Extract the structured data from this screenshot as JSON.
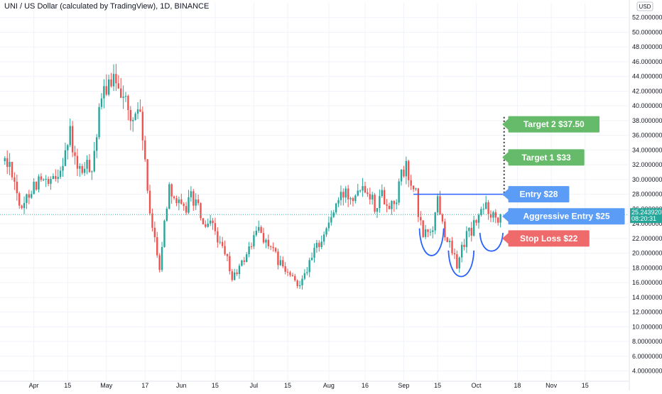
{
  "header": {
    "title": "UNI / US Dollar (calculated by TradingView), 1D, BINANCE",
    "currency": "USD"
  },
  "chart_data": {
    "type": "candlestick",
    "title": "UNI / US Dollar (calculated by TradingView), 1D, BINANCE",
    "ylim": [
      2.7,
      54.0
    ],
    "y_ticks": [
      "52.0000000",
      "50.0000000",
      "48.0000000",
      "46.0000000",
      "44.0000000",
      "42.0000000",
      "40.0000000",
      "38.0000000",
      "36.0000000",
      "34.0000000",
      "32.0000000",
      "30.0000000",
      "28.0000000",
      "26.0000000",
      "24.0000000",
      "22.0000000",
      "20.0000000",
      "18.0000000",
      "16.0000000",
      "14.0000000",
      "12.0000000",
      "10.0000000",
      "8.0000000",
      "6.0000000",
      "4.0000000"
    ],
    "x_ticks": [
      {
        "label": "Apr",
        "day": 12
      },
      {
        "label": "15",
        "day": 26
      },
      {
        "label": "May",
        "day": 42
      },
      {
        "label": "17",
        "day": 58
      },
      {
        "label": "Jun",
        "day": 73
      },
      {
        "label": "15",
        "day": 87
      },
      {
        "label": "Jul",
        "day": 103
      },
      {
        "label": "15",
        "day": 117
      },
      {
        "label": "Aug",
        "day": 134
      },
      {
        "label": "16",
        "day": 149
      },
      {
        "label": "Sep",
        "day": 165
      },
      {
        "label": "15",
        "day": 179
      },
      {
        "label": "Oct",
        "day": 195
      },
      {
        "label": "18",
        "day": 212
      },
      {
        "label": "Nov",
        "day": 226
      },
      {
        "label": "15",
        "day": 240
      }
    ],
    "x_day_range": [
      -2,
      258
    ],
    "current_price": {
      "value": 25.2439201,
      "label": "25.2439201",
      "countdown": "08:20:31",
      "color": "#26a69a"
    },
    "up_color": "#26a69a",
    "down_color": "#ef5350",
    "keypoints": [
      [
        0,
        32.5
      ],
      [
        3,
        31.5
      ],
      [
        7,
        25.3
      ],
      [
        10,
        28.5
      ],
      [
        14,
        30.0
      ],
      [
        18,
        29.0
      ],
      [
        21,
        30.0
      ],
      [
        27,
        36.0
      ],
      [
        30,
        31.0
      ],
      [
        33,
        31.5
      ],
      [
        36,
        32.0
      ],
      [
        40,
        40.5
      ],
      [
        42,
        43.0
      ],
      [
        44,
        42.0
      ],
      [
        46,
        44.0
      ],
      [
        49,
        42.0
      ],
      [
        52,
        37.5
      ],
      [
        55,
        40.0
      ],
      [
        57,
        36.0
      ],
      [
        60,
        24.5
      ],
      [
        62,
        22.5
      ],
      [
        64,
        18.0
      ],
      [
        66,
        24.0
      ],
      [
        68,
        29.5
      ],
      [
        71,
        27.0
      ],
      [
        74,
        25.5
      ],
      [
        77,
        28.0
      ],
      [
        80,
        26.0
      ],
      [
        83,
        23.0
      ],
      [
        86,
        24.0
      ],
      [
        89,
        21.0
      ],
      [
        92,
        19.0
      ],
      [
        94,
        16.5
      ],
      [
        96,
        17.5
      ],
      [
        98,
        18.5
      ],
      [
        100,
        20.0
      ],
      [
        103,
        22.0
      ],
      [
        105,
        23.5
      ],
      [
        108,
        21.5
      ],
      [
        110,
        20.5
      ],
      [
        113,
        19.0
      ],
      [
        116,
        17.5
      ],
      [
        119,
        16.5
      ],
      [
        121,
        15.5
      ],
      [
        123,
        17.0
      ],
      [
        126,
        18.5
      ],
      [
        129,
        21.0
      ],
      [
        132,
        22.5
      ],
      [
        135,
        25.0
      ],
      [
        138,
        27.0
      ],
      [
        141,
        28.5
      ],
      [
        144,
        28.0
      ],
      [
        147,
        29.5
      ],
      [
        150,
        29.0
      ],
      [
        153,
        26.5
      ],
      [
        156,
        28.0
      ],
      [
        159,
        26.5
      ],
      [
        162,
        27.5
      ],
      [
        164,
        30.5
      ],
      [
        166,
        31.5
      ],
      [
        168,
        29.0
      ],
      [
        170,
        28.0
      ],
      [
        171,
        25.0
      ],
      [
        173,
        22.5
      ],
      [
        175,
        23.0
      ],
      [
        177,
        23.5
      ],
      [
        179,
        27.5
      ],
      [
        181,
        24.0
      ],
      [
        183,
        22.0
      ],
      [
        185,
        20.0
      ],
      [
        187,
        18.5
      ],
      [
        189,
        20.5
      ],
      [
        191,
        22.5
      ],
      [
        193,
        23.0
      ],
      [
        195,
        24.5
      ],
      [
        197,
        25.5
      ],
      [
        199,
        26.5
      ],
      [
        201,
        25.5
      ],
      [
        203,
        25.0
      ],
      [
        205,
        25.2
      ]
    ],
    "annotations": [
      {
        "label": "Target 2 $37.50",
        "price": 37.5,
        "color": "#66bb6a"
      },
      {
        "label": "Target 1 $33",
        "price": 33.0,
        "color": "#66bb6a"
      },
      {
        "label": "Entry $28",
        "price": 28.0,
        "color": "#5b9cf6"
      },
      {
        "label": "Aggressive Entry $25",
        "price": 25.0,
        "color": "#5b9cf6"
      },
      {
        "label": "Stop Loss $22",
        "price": 22.0,
        "color": "#ef6b6b"
      }
    ],
    "entry_line": {
      "price": 28.0,
      "color": "#2962ff"
    },
    "target_dotted_line": {
      "from": 27.8,
      "to": 38.5,
      "color": "#333333"
    },
    "pattern_color": "#2962ff"
  }
}
